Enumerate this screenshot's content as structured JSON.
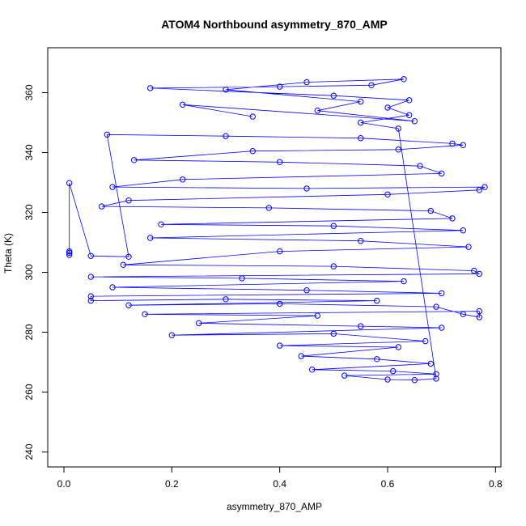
{
  "chart_data": {
    "type": "scatter",
    "title": "ATOM4 Northbound asymmetry_870_AMP",
    "xlabel": "asymmetry_870_AMP",
    "ylabel": "Theta (K)",
    "xlim": [
      -0.03,
      0.81
    ],
    "ylim": [
      235,
      375
    ],
    "xticks": [
      "0.0",
      "0.2",
      "0.4",
      "0.6",
      "0.8"
    ],
    "xtick_values": [
      0.0,
      0.2,
      0.4,
      0.6,
      0.8
    ],
    "yticks": [
      "240",
      "260",
      "280",
      "300",
      "320",
      "340",
      "360"
    ],
    "ytick_values": [
      240,
      260,
      280,
      300,
      320,
      340,
      360
    ],
    "marker": "open-circle",
    "connected": true,
    "color": "#0000ff",
    "series": [
      {
        "values": [
          {
            "x": 0.01,
            "y": 306.5
          },
          {
            "x": 0.01,
            "y": 305.8
          },
          {
            "x": 0.01,
            "y": 307.0
          },
          {
            "x": 0.01,
            "y": 329.8
          },
          {
            "x": 0.05,
            "y": 305.5
          },
          {
            "x": 0.12,
            "y": 305.2
          },
          {
            "x": 0.08,
            "y": 346.0
          },
          {
            "x": 0.3,
            "y": 345.5
          },
          {
            "x": 0.55,
            "y": 344.8
          },
          {
            "x": 0.72,
            "y": 343.0
          },
          {
            "x": 0.74,
            "y": 342.5
          },
          {
            "x": 0.62,
            "y": 341.0
          },
          {
            "x": 0.35,
            "y": 340.5
          },
          {
            "x": 0.13,
            "y": 337.5
          },
          {
            "x": 0.4,
            "y": 336.8
          },
          {
            "x": 0.66,
            "y": 335.5
          },
          {
            "x": 0.7,
            "y": 333.0
          },
          {
            "x": 0.22,
            "y": 331.0
          },
          {
            "x": 0.09,
            "y": 328.5
          },
          {
            "x": 0.45,
            "y": 328.0
          },
          {
            "x": 0.78,
            "y": 328.5
          },
          {
            "x": 0.77,
            "y": 327.5
          },
          {
            "x": 0.6,
            "y": 326.0
          },
          {
            "x": 0.12,
            "y": 324.0
          },
          {
            "x": 0.07,
            "y": 322.0
          },
          {
            "x": 0.38,
            "y": 321.5
          },
          {
            "x": 0.68,
            "y": 320.5
          },
          {
            "x": 0.72,
            "y": 318.0
          },
          {
            "x": 0.18,
            "y": 316.0
          },
          {
            "x": 0.5,
            "y": 315.5
          },
          {
            "x": 0.74,
            "y": 314.0
          },
          {
            "x": 0.16,
            "y": 311.5
          },
          {
            "x": 0.55,
            "y": 310.5
          },
          {
            "x": 0.75,
            "y": 308.5
          },
          {
            "x": 0.4,
            "y": 307.0
          },
          {
            "x": 0.11,
            "y": 302.5
          },
          {
            "x": 0.5,
            "y": 302.0
          },
          {
            "x": 0.76,
            "y": 300.5
          },
          {
            "x": 0.77,
            "y": 299.5
          },
          {
            "x": 0.05,
            "y": 298.5
          },
          {
            "x": 0.33,
            "y": 298.0
          },
          {
            "x": 0.63,
            "y": 297.0
          },
          {
            "x": 0.09,
            "y": 295.0
          },
          {
            "x": 0.45,
            "y": 294.0
          },
          {
            "x": 0.7,
            "y": 293.0
          },
          {
            "x": 0.05,
            "y": 292.0
          },
          {
            "x": 0.05,
            "y": 290.5
          },
          {
            "x": 0.3,
            "y": 291.0
          },
          {
            "x": 0.58,
            "y": 290.5
          },
          {
            "x": 0.12,
            "y": 289.0
          },
          {
            "x": 0.4,
            "y": 289.5
          },
          {
            "x": 0.69,
            "y": 288.5
          },
          {
            "x": 0.74,
            "y": 286.0
          },
          {
            "x": 0.77,
            "y": 285.0
          },
          {
            "x": 0.77,
            "y": 287.0
          },
          {
            "x": 0.15,
            "y": 286.0
          },
          {
            "x": 0.47,
            "y": 285.5
          },
          {
            "x": 0.25,
            "y": 283.0
          },
          {
            "x": 0.55,
            "y": 282.0
          },
          {
            "x": 0.7,
            "y": 281.5
          },
          {
            "x": 0.2,
            "y": 279.0
          },
          {
            "x": 0.5,
            "y": 279.5
          },
          {
            "x": 0.67,
            "y": 277.0
          },
          {
            "x": 0.4,
            "y": 275.5
          },
          {
            "x": 0.62,
            "y": 275.0
          },
          {
            "x": 0.44,
            "y": 272.0
          },
          {
            "x": 0.58,
            "y": 271.0
          },
          {
            "x": 0.68,
            "y": 269.5
          },
          {
            "x": 0.46,
            "y": 267.5
          },
          {
            "x": 0.61,
            "y": 267.0
          },
          {
            "x": 0.69,
            "y": 266.0
          },
          {
            "x": 0.52,
            "y": 265.5
          },
          {
            "x": 0.6,
            "y": 264.2
          },
          {
            "x": 0.65,
            "y": 264.0
          },
          {
            "x": 0.69,
            "y": 264.5
          },
          {
            "x": 0.62,
            "y": 348.0
          },
          {
            "x": 0.55,
            "y": 350.0
          },
          {
            "x": 0.64,
            "y": 352.5
          },
          {
            "x": 0.6,
            "y": 355.0
          },
          {
            "x": 0.64,
            "y": 357.5
          },
          {
            "x": 0.5,
            "y": 359.0
          },
          {
            "x": 0.16,
            "y": 361.5
          },
          {
            "x": 0.4,
            "y": 362.0
          },
          {
            "x": 0.57,
            "y": 362.5
          },
          {
            "x": 0.63,
            "y": 364.5
          },
          {
            "x": 0.45,
            "y": 363.5
          },
          {
            "x": 0.3,
            "y": 361.0
          },
          {
            "x": 0.55,
            "y": 357.0
          },
          {
            "x": 0.47,
            "y": 354.0
          },
          {
            "x": 0.65,
            "y": 350.5
          },
          {
            "x": 0.22,
            "y": 356.0
          },
          {
            "x": 0.35,
            "y": 352.0
          }
        ]
      }
    ]
  }
}
